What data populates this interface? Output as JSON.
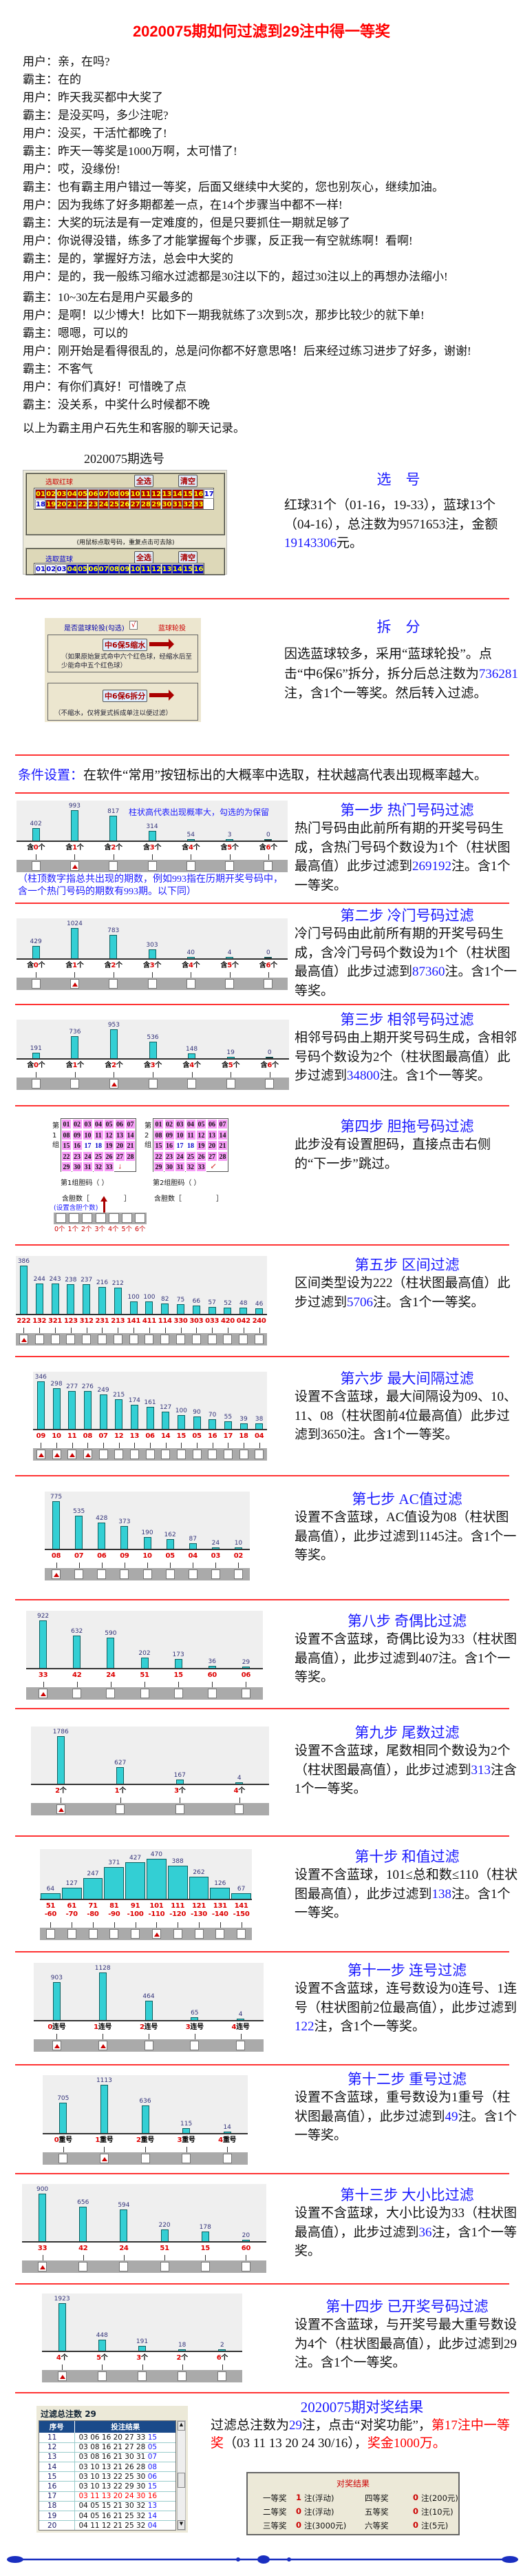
{
  "title": "2020075期如何过滤到29注中得一等奖",
  "chat": [
    {
      "speaker": "用户",
      "text": "亲，在吗?"
    },
    {
      "speaker": "霸主",
      "text": "在的"
    },
    {
      "speaker": "用户",
      "text": "昨天我买都中大奖了"
    },
    {
      "speaker": "霸主",
      "text": "是没买吗，多少注呢?"
    },
    {
      "speaker": "用户",
      "text": "没买，干活忙都晚了!"
    },
    {
      "speaker": "霸主",
      "text": "昨天一等奖是1000万啊，太可惜了!"
    },
    {
      "speaker": "用户",
      "text": "哎，没缘份!"
    },
    {
      "speaker": "霸主",
      "text": "也有霸主用户错过一等奖，后面又继续中大奖的，您也别灰心，继续加油。"
    },
    {
      "speaker": "用户",
      "text": "因为我练了好多期都差一点，在14个步骤当中都不一样!"
    },
    {
      "speaker": "霸主",
      "text": "大奖的玩法是有一定难度的，但是只要抓住一期就足够了"
    },
    {
      "speaker": "用户",
      "text": "你说得没错，练多了才能掌握每个步骤，反正我一有空就练啊！看啊!"
    },
    {
      "speaker": "霸主",
      "text": "是的，掌握好方法，总会中大奖的"
    },
    {
      "speaker": "用户",
      "text": "是的，我一般练习缩水过滤都是30注以下的，超过30注以上的再想办法缩小!"
    },
    {
      "speaker": "霸主",
      "text": "10~30左右是用户买最多的"
    },
    {
      "speaker": "用户",
      "text": "是啊！以少博大！比如下一期我就练了3次到5次，那步比较少的就下单!"
    },
    {
      "speaker": "霸主",
      "text": "嗯嗯，可以的"
    },
    {
      "speaker": "用户",
      "text": "刚开始是看得很乱的，总是问你都不好意思咯！后来经过练习进步了好多，谢谢!"
    },
    {
      "speaker": "霸主",
      "text": "不客气"
    },
    {
      "speaker": "用户",
      "text": "有你们真好！可惜晚了点"
    },
    {
      "speaker": "霸主",
      "text": "没关系，中奖什么时候都不晚"
    }
  ],
  "chat_summary": "以上为霸主用户石先生和客服的聊天记录。",
  "selection": {
    "caption": "2020075期选号",
    "red_label": "选取红球",
    "blue_label": "选取蓝球",
    "select_all": "全选",
    "clear": "清空",
    "hint": "(用鼠标点取号码，重复点击可去除)",
    "red_balls": [
      "01",
      "02",
      "03",
      "04",
      "05",
      "06",
      "07",
      "08",
      "09",
      "10",
      "11",
      "12",
      "13",
      "14",
      "15",
      "16",
      "17",
      "18",
      "19",
      "20",
      "21",
      "22",
      "23",
      "24",
      "25",
      "26",
      "27",
      "28",
      "29",
      "30",
      "31",
      "32",
      "33"
    ],
    "red_unselected": [
      "17",
      "18"
    ],
    "blue_balls": [
      "01",
      "02",
      "03",
      "04",
      "05",
      "06",
      "07",
      "08",
      "09",
      "10",
      "11",
      "12",
      "13",
      "14",
      "15",
      "16"
    ],
    "blue_unselected": [
      "01",
      "02",
      "03"
    ],
    "heading": "选　号",
    "pre": "红球31个（01-16，19-33），蓝球13个（04-16），总注数为9571653注，金额",
    "num": "19143306",
    "post": "元。"
  },
  "split": {
    "check_label": "是否蓝球轮投(勾选)",
    "check_mark": "√",
    "mode": "蓝球轮投",
    "btn1": "中6保5缩水",
    "note1": "（如果原始复式命中六个红色球，经缩水后至少能命中五个红色球）",
    "btn2": "中6保6拆分",
    "note2": "（不缩水，仅将复式拆成单注以便过滤）",
    "heading": "拆　分",
    "pre": "因选蓝球较多，采用“蓝球轮投”。点击“中6保6”拆分，拆分后总注数为",
    "num": "736281",
    "post": "注，含1个一等奖。然后转入过滤。"
  },
  "conditions": {
    "label": "条件设置：",
    "text": "在软件“常用”按钮标出的大概率中选取，柱状越高代表出现概率越大。"
  },
  "step1_note": "柱状高代表出现概率大，勾选的为保留",
  "step1_caption": "（柱顶数字指总共出现的期数，例如993指在历期开奖号码中，含一个热门号码的期数有993期。以下同）",
  "steps": [
    {
      "title": "第一步 热门号码过滤",
      "pre": "热门号码由此前所有期的开奖号码生成，含热门号码个数设为1个（柱状图最高值）此步过滤到",
      "num": "269192",
      "post": "注。含1个一等奖。",
      "num_color": "#1a1aff"
    },
    {
      "title": "第二步 冷门号码过滤",
      "pre": "冷门号码由此前所有期的开奖号码生成，含冷门号码个数设为1个（柱状图最高值）此步过滤到",
      "num": "87360",
      "post": "注。含1个一等奖。",
      "num_color": "#1a1aff"
    },
    {
      "title": "第三步 相邻号码过滤",
      "pre": "相邻号码由上期开奖号码生成，含相邻号码个数设为2个（柱状图最高值）此步过滤到",
      "num": "34800",
      "post": "注。含1个一等奖。",
      "num_color": "#1a1aff"
    },
    {
      "title": "第四步 胆拖号码过滤",
      "pre": "此步没有设置胆码，直接点击右侧的“下一步”跳过。",
      "num": "",
      "post": "",
      "num_color": "#111111"
    },
    {
      "title": "第五步 区间过滤",
      "pre": "区间类型设为222（柱状图最高值）此步过滤到",
      "num": "5706",
      "post": "注。含1个一等奖。",
      "num_color": "#1a1aff"
    },
    {
      "title": "第六步 最大间隔过滤",
      "pre": "设置不含蓝球，最大间隔设为09、10、11、08（柱状图前4位最高值）此步过滤到",
      "num": "3650",
      "post": "注。含1个一等奖。",
      "num_color": "#111111"
    },
    {
      "title": "第七步 AC值过滤",
      "pre": "设置不含蓝球，AC值设为08（柱状图最高值），此步过滤到",
      "num": "1145",
      "post": "注。含1个一等奖。",
      "num_color": "#111111"
    },
    {
      "title": "第八步 奇偶比过滤",
      "pre": "设置不含蓝球，奇偶比设为33（柱状图最高值），此步过滤到",
      "num": "407",
      "post": "注。含1个一等奖。",
      "num_color": "#111111"
    },
    {
      "title": "第九步 尾数过滤",
      "pre": "设置不含蓝球，尾数相同个数设为2个（柱状图最高值），此步过滤到",
      "num": "313",
      "post": "注含1个一等奖。",
      "num_color": "#1a1aff"
    },
    {
      "title": "第十步 和值过滤",
      "pre": "设置不含蓝球，101≤总和数≤110（柱状图最高值），此步过滤到",
      "num": "138",
      "post": "注。含1个一等奖。",
      "num_color": "#1a1aff"
    },
    {
      "title": "第十一步 连号过滤",
      "pre": "设置不含蓝球，连号数设为0连号、1连号（柱状图前2位最高值），此步过滤到",
      "num": "122",
      "post": "注，含1个一等奖。",
      "num_color": "#1a1aff"
    },
    {
      "title": "第十二步 重号过滤",
      "pre": "设置不含蓝球，重号数设为1重号（柱状图最高值），此步过滤到",
      "num": "49",
      "post": "注。含1个一等奖。",
      "num_color": "#1a1aff"
    },
    {
      "title": "第十三步 大小比过滤",
      "pre": "设置不含蓝球，大小比设为33（柱状图最高值），此步过滤到",
      "num": "36",
      "post": "注，含1个一等奖。",
      "num_color": "#1a1aff"
    },
    {
      "title": "第十四步 已开奖号码过滤",
      "pre": "设置不含蓝球，与开奖号最大重号数设为4个（柱状图最高值），此步过滤到",
      "num": "29",
      "post": "注。含1个一等奖。",
      "num_color": "#111111"
    }
  ],
  "dan": {
    "numbers": [
      "01",
      "02",
      "03",
      "04",
      "05",
      "06",
      "07",
      "08",
      "09",
      "10",
      "11",
      "12",
      "13",
      "14",
      "15",
      "16",
      "17",
      "18",
      "19",
      "20",
      "21",
      "22",
      "23",
      "24",
      "25",
      "26",
      "27",
      "28",
      "29",
      "30",
      "31",
      "32",
      "33"
    ],
    "unselected": [
      "17",
      "18"
    ],
    "group1": "第1组",
    "group2": "第2组",
    "dan1": "第1组胆码（ ）",
    "dan2": "第2组胆码（ ）",
    "count1": "含胆数［　　　　　］",
    "count2": "含胆数［　　　　　］",
    "set_hint": "(设置含胆个数)",
    "options": [
      "0个",
      "1个",
      "2个",
      "3个",
      "4个",
      "5个",
      "6个"
    ]
  },
  "chart_data": [
    {
      "type": "bar",
      "categories": [
        "含0个",
        "含1个",
        "含2个",
        "含3个",
        "含4个",
        "含5个",
        "含6个"
      ],
      "values": [
        402,
        993,
        817,
        314,
        54,
        3,
        0
      ],
      "checked": [
        1
      ]
    },
    {
      "type": "bar",
      "categories": [
        "含0个",
        "含1个",
        "含2个",
        "含3个",
        "含4个",
        "含5个",
        "含6个"
      ],
      "values": [
        429,
        1024,
        783,
        303,
        40,
        4,
        0
      ],
      "checked": [
        1
      ]
    },
    {
      "type": "bar",
      "categories": [
        "含0个",
        "含1个",
        "含2个",
        "含3个",
        "含4个",
        "含5个",
        "含6个"
      ],
      "values": [
        191,
        736,
        953,
        536,
        148,
        19,
        0
      ],
      "checked": [
        2
      ]
    },
    {
      "type": "bar",
      "categories": [
        "222",
        "132",
        "321",
        "123",
        "312",
        "231",
        "213",
        "141",
        "411",
        "114",
        "330",
        "303",
        "033",
        "420",
        "042",
        "240"
      ],
      "values": [
        386,
        244,
        243,
        238,
        237,
        216,
        212,
        100,
        100,
        82,
        75,
        66,
        57,
        52,
        48,
        46
      ],
      "checked": [
        0
      ]
    },
    {
      "type": "bar",
      "categories": [
        "09",
        "10",
        "11",
        "08",
        "07",
        "12",
        "13",
        "06",
        "14",
        "15",
        "05",
        "16",
        "17",
        "18",
        "04"
      ],
      "values": [
        346,
        298,
        277,
        276,
        249,
        215,
        174,
        161,
        127,
        100,
        90,
        70,
        55,
        39,
        38
      ],
      "checked": [
        0,
        1,
        2,
        3
      ]
    },
    {
      "type": "bar",
      "categories": [
        "08",
        "07",
        "06",
        "09",
        "10",
        "05",
        "04",
        "03",
        "02"
      ],
      "values": [
        775,
        535,
        428,
        373,
        190,
        162,
        87,
        24,
        10
      ],
      "checked": [
        0
      ]
    },
    {
      "type": "bar",
      "categories": [
        "33",
        "42",
        "24",
        "51",
        "15",
        "60",
        "06"
      ],
      "values": [
        922,
        632,
        590,
        202,
        173,
        36,
        29
      ],
      "checked": [
        0
      ]
    },
    {
      "type": "bar",
      "categories": [
        "2个",
        "1个",
        "3个",
        "4个"
      ],
      "values": [
        1786,
        627,
        167,
        4
      ],
      "checked": [
        0
      ]
    },
    {
      "type": "bar",
      "categories": [
        "51-60",
        "61-70",
        "71-80",
        "81-90",
        "91-100",
        "101-110",
        "111-120",
        "121-130",
        "131-140",
        "141-150"
      ],
      "values": [
        64,
        127,
        247,
        371,
        427,
        470,
        388,
        262,
        126,
        67
      ],
      "checked": [
        5
      ]
    },
    {
      "type": "bar",
      "categories": [
        "0连号",
        "1连号",
        "2连号",
        "3连号",
        "4连号"
      ],
      "values": [
        903,
        1128,
        464,
        65,
        4
      ],
      "checked": [
        0,
        1
      ]
    },
    {
      "type": "bar",
      "categories": [
        "0重号",
        "1重号",
        "2重号",
        "3重号",
        "4重号"
      ],
      "values": [
        705,
        1113,
        636,
        115,
        14
      ],
      "checked": [
        1
      ]
    },
    {
      "type": "bar",
      "categories": [
        "33",
        "42",
        "24",
        "51",
        "15",
        "60"
      ],
      "values": [
        900,
        656,
        594,
        220,
        178,
        20
      ],
      "checked": [
        0
      ]
    },
    {
      "type": "bar",
      "categories": [
        "4个",
        "5个",
        "3个",
        "2个",
        "6个"
      ],
      "values": [
        1923,
        448,
        191,
        18,
        2
      ],
      "checked": [
        0
      ]
    }
  ],
  "results": {
    "total_label": "过滤总注数",
    "total": "29",
    "headers": [
      "序号",
      "投注结果"
    ],
    "rows": [
      {
        "no": "11",
        "reds": "03 06 16 20 27 33",
        "blue": "15"
      },
      {
        "no": "12",
        "reds": "03 08 16 21 27 28",
        "blue": "05"
      },
      {
        "no": "13",
        "reds": "03 08 16 21 30 31",
        "blue": "07"
      },
      {
        "no": "14",
        "reds": "03 10 13 21 26 28",
        "blue": "08"
      },
      {
        "no": "15",
        "reds": "03 10 13 22 25 30",
        "blue": "06"
      },
      {
        "no": "16",
        "reds": "03 10 13 22 29 30",
        "blue": "15"
      },
      {
        "no": "17",
        "reds": "03 11 13 20 24 30",
        "blue": "16",
        "winner": true
      },
      {
        "no": "18",
        "reds": "04 05 15 21 30 32",
        "blue": "13"
      },
      {
        "no": "19",
        "reds": "04 05 16 21 25 32",
        "blue": "14"
      },
      {
        "no": "20",
        "reds": "04 11 12 21 25 32",
        "blue": "04"
      }
    ],
    "heading": "2020075期对奖结果",
    "t1": "过滤总注数为",
    "t_num": "29",
    "t2": "注，点击“对奖功能”，",
    "t_red1": "第17注中一等奖",
    "t3": "（03 11 13 20 24 30/16），",
    "t_red2": "奖金1000万。",
    "prize_title": "对奖结果",
    "prizes": [
      {
        "name": "一等奖",
        "count": "1",
        "unit": "注(浮动)"
      },
      {
        "name": "四等奖",
        "count": "0",
        "unit": "注(200元)"
      },
      {
        "name": "二等奖",
        "count": "0",
        "unit": "注(浮动)"
      },
      {
        "name": "五等奖",
        "count": "0",
        "unit": "注(10元)"
      },
      {
        "name": "三等奖",
        "count": "0",
        "unit": "注(3000元)"
      },
      {
        "name": "六等奖",
        "count": "0",
        "unit": "注(5元)"
      }
    ]
  }
}
